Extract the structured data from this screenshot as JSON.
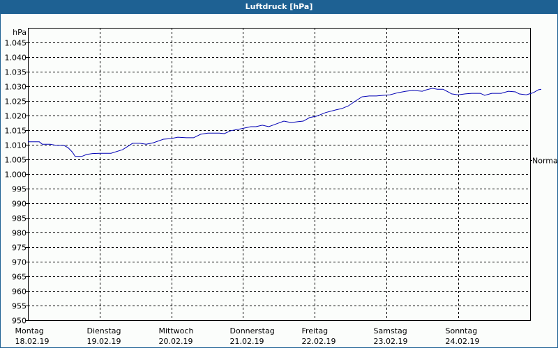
{
  "window": {
    "title": "Luftdruck [hPa]"
  },
  "colors": {
    "titlebar": "#1e6193",
    "line": "#0000b4",
    "background": "#fbfdfb"
  },
  "chart_data": {
    "type": "line",
    "title": "Luftdruck [hPa]",
    "xlabel": "",
    "ylabel": "hPa",
    "ylim": [
      950,
      1050
    ],
    "yticks": [
      950,
      955,
      960,
      965,
      970,
      975,
      980,
      985,
      990,
      995,
      1000,
      1005,
      1010,
      1015,
      1020,
      1025,
      1030,
      1035,
      1040,
      1045
    ],
    "ytick_labels": [
      "950",
      "955",
      "960",
      "965",
      "970",
      "975",
      "980",
      "985",
      "990",
      "995",
      "1.000",
      "1.005",
      "1.010",
      "1.015",
      "1.020",
      "1.025",
      "1.030",
      "1.035",
      "1.040",
      "1.045"
    ],
    "reference_line": {
      "label": "Normal",
      "value": 1004.8
    },
    "grid": true,
    "x_categories": [
      {
        "day": "Montag",
        "date": "18.02.19"
      },
      {
        "day": "Dienstag",
        "date": "19.02.19"
      },
      {
        "day": "Mittwoch",
        "date": "20.02.19"
      },
      {
        "day": "Donnerstag",
        "date": "21.02.19"
      },
      {
        "day": "Freitag",
        "date": "22.02.19"
      },
      {
        "day": "Samstag",
        "date": "23.02.19"
      },
      {
        "day": "Sonntag",
        "date": "24.02.19"
      }
    ],
    "series": [
      {
        "name": "Luftdruck",
        "x_unit": "days since 18.02.19 00:00",
        "points": [
          [
            0.0,
            1011.0
          ],
          [
            0.16,
            1011.0
          ],
          [
            0.2,
            1010.2
          ],
          [
            0.31,
            1010.2
          ],
          [
            0.39,
            1009.8
          ],
          [
            0.5,
            1009.8
          ],
          [
            0.56,
            1009.0
          ],
          [
            0.62,
            1007.5
          ],
          [
            0.66,
            1006.0
          ],
          [
            0.75,
            1006.0
          ],
          [
            0.82,
            1006.7
          ],
          [
            0.9,
            1007.0
          ],
          [
            1.0,
            1007.1
          ],
          [
            1.16,
            1007.1
          ],
          [
            1.32,
            1008.3
          ],
          [
            1.46,
            1010.5
          ],
          [
            1.56,
            1010.5
          ],
          [
            1.65,
            1010.2
          ],
          [
            1.75,
            1010.7
          ],
          [
            1.89,
            1011.9
          ],
          [
            1.99,
            1012.1
          ],
          [
            2.09,
            1012.6
          ],
          [
            2.21,
            1012.4
          ],
          [
            2.31,
            1012.4
          ],
          [
            2.41,
            1013.6
          ],
          [
            2.51,
            1014.0
          ],
          [
            2.67,
            1014.0
          ],
          [
            2.74,
            1013.8
          ],
          [
            2.83,
            1014.8
          ],
          [
            2.98,
            1015.5
          ],
          [
            3.11,
            1016.2
          ],
          [
            3.18,
            1016.2
          ],
          [
            3.27,
            1016.7
          ],
          [
            3.36,
            1016.2
          ],
          [
            3.46,
            1017.1
          ],
          [
            3.57,
            1018.1
          ],
          [
            3.67,
            1017.6
          ],
          [
            3.77,
            1017.9
          ],
          [
            3.84,
            1018.1
          ],
          [
            3.93,
            1019.3
          ],
          [
            4.03,
            1019.8
          ],
          [
            4.15,
            1021.0
          ],
          [
            4.29,
            1021.9
          ],
          [
            4.38,
            1022.4
          ],
          [
            4.47,
            1023.3
          ],
          [
            4.57,
            1025.0
          ],
          [
            4.66,
            1026.4
          ],
          [
            4.76,
            1026.7
          ],
          [
            4.86,
            1026.7
          ],
          [
            4.95,
            1026.9
          ],
          [
            5.05,
            1027.1
          ],
          [
            5.16,
            1027.8
          ],
          [
            5.27,
            1028.3
          ],
          [
            5.37,
            1028.6
          ],
          [
            5.5,
            1028.3
          ],
          [
            5.56,
            1028.8
          ],
          [
            5.64,
            1029.3
          ],
          [
            5.71,
            1029.0
          ],
          [
            5.79,
            1029.0
          ],
          [
            5.86,
            1028.1
          ],
          [
            5.91,
            1027.4
          ],
          [
            6.0,
            1027.1
          ],
          [
            6.1,
            1027.4
          ],
          [
            6.19,
            1027.6
          ],
          [
            6.31,
            1027.6
          ],
          [
            6.37,
            1026.9
          ],
          [
            6.47,
            1027.6
          ],
          [
            6.6,
            1027.6
          ],
          [
            6.7,
            1028.3
          ],
          [
            6.8,
            1028.1
          ],
          [
            6.85,
            1027.4
          ],
          [
            6.95,
            1027.1
          ],
          [
            7.05,
            1027.8
          ],
          [
            7.12,
            1028.8
          ],
          [
            7.16,
            1029.0
          ]
        ]
      }
    ]
  }
}
